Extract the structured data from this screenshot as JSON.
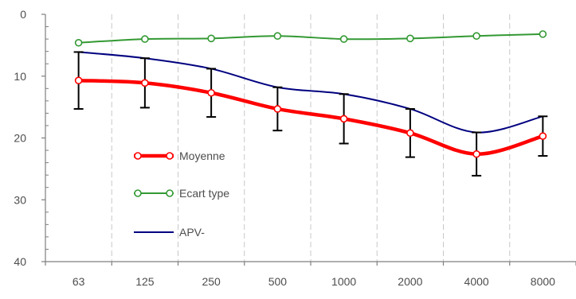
{
  "chart_data": {
    "type": "line",
    "title": "",
    "xlabel": "",
    "ylabel": "",
    "categories": [
      "63",
      "125",
      "250",
      "500",
      "1000",
      "2000",
      "4000",
      "8000"
    ],
    "yticks": [
      0,
      10,
      20,
      30,
      40
    ],
    "ylim": [
      0,
      40
    ],
    "y_inverted": true,
    "grid": "vertical",
    "series": [
      {
        "name": "Moyenne",
        "values": [
          10.7,
          11.1,
          12.7,
          15.3,
          16.9,
          19.2,
          22.6,
          19.7
        ],
        "color": "#ff0000",
        "marker": "circle-open",
        "error_bars": [
          4.6,
          4.0,
          3.9,
          3.5,
          4.0,
          3.9,
          3.5,
          3.2
        ]
      },
      {
        "name": "Ecart type",
        "values": [
          4.6,
          4.0,
          3.9,
          3.5,
          4.0,
          3.9,
          3.5,
          3.2
        ],
        "color": "#339933",
        "marker": "circle-open"
      },
      {
        "name": "APV-",
        "values": [
          6.1,
          7.1,
          8.8,
          11.8,
          12.9,
          15.3,
          19.1,
          16.5
        ],
        "color": "#000080",
        "marker": "none"
      }
    ],
    "legend_position": "inside-left"
  }
}
